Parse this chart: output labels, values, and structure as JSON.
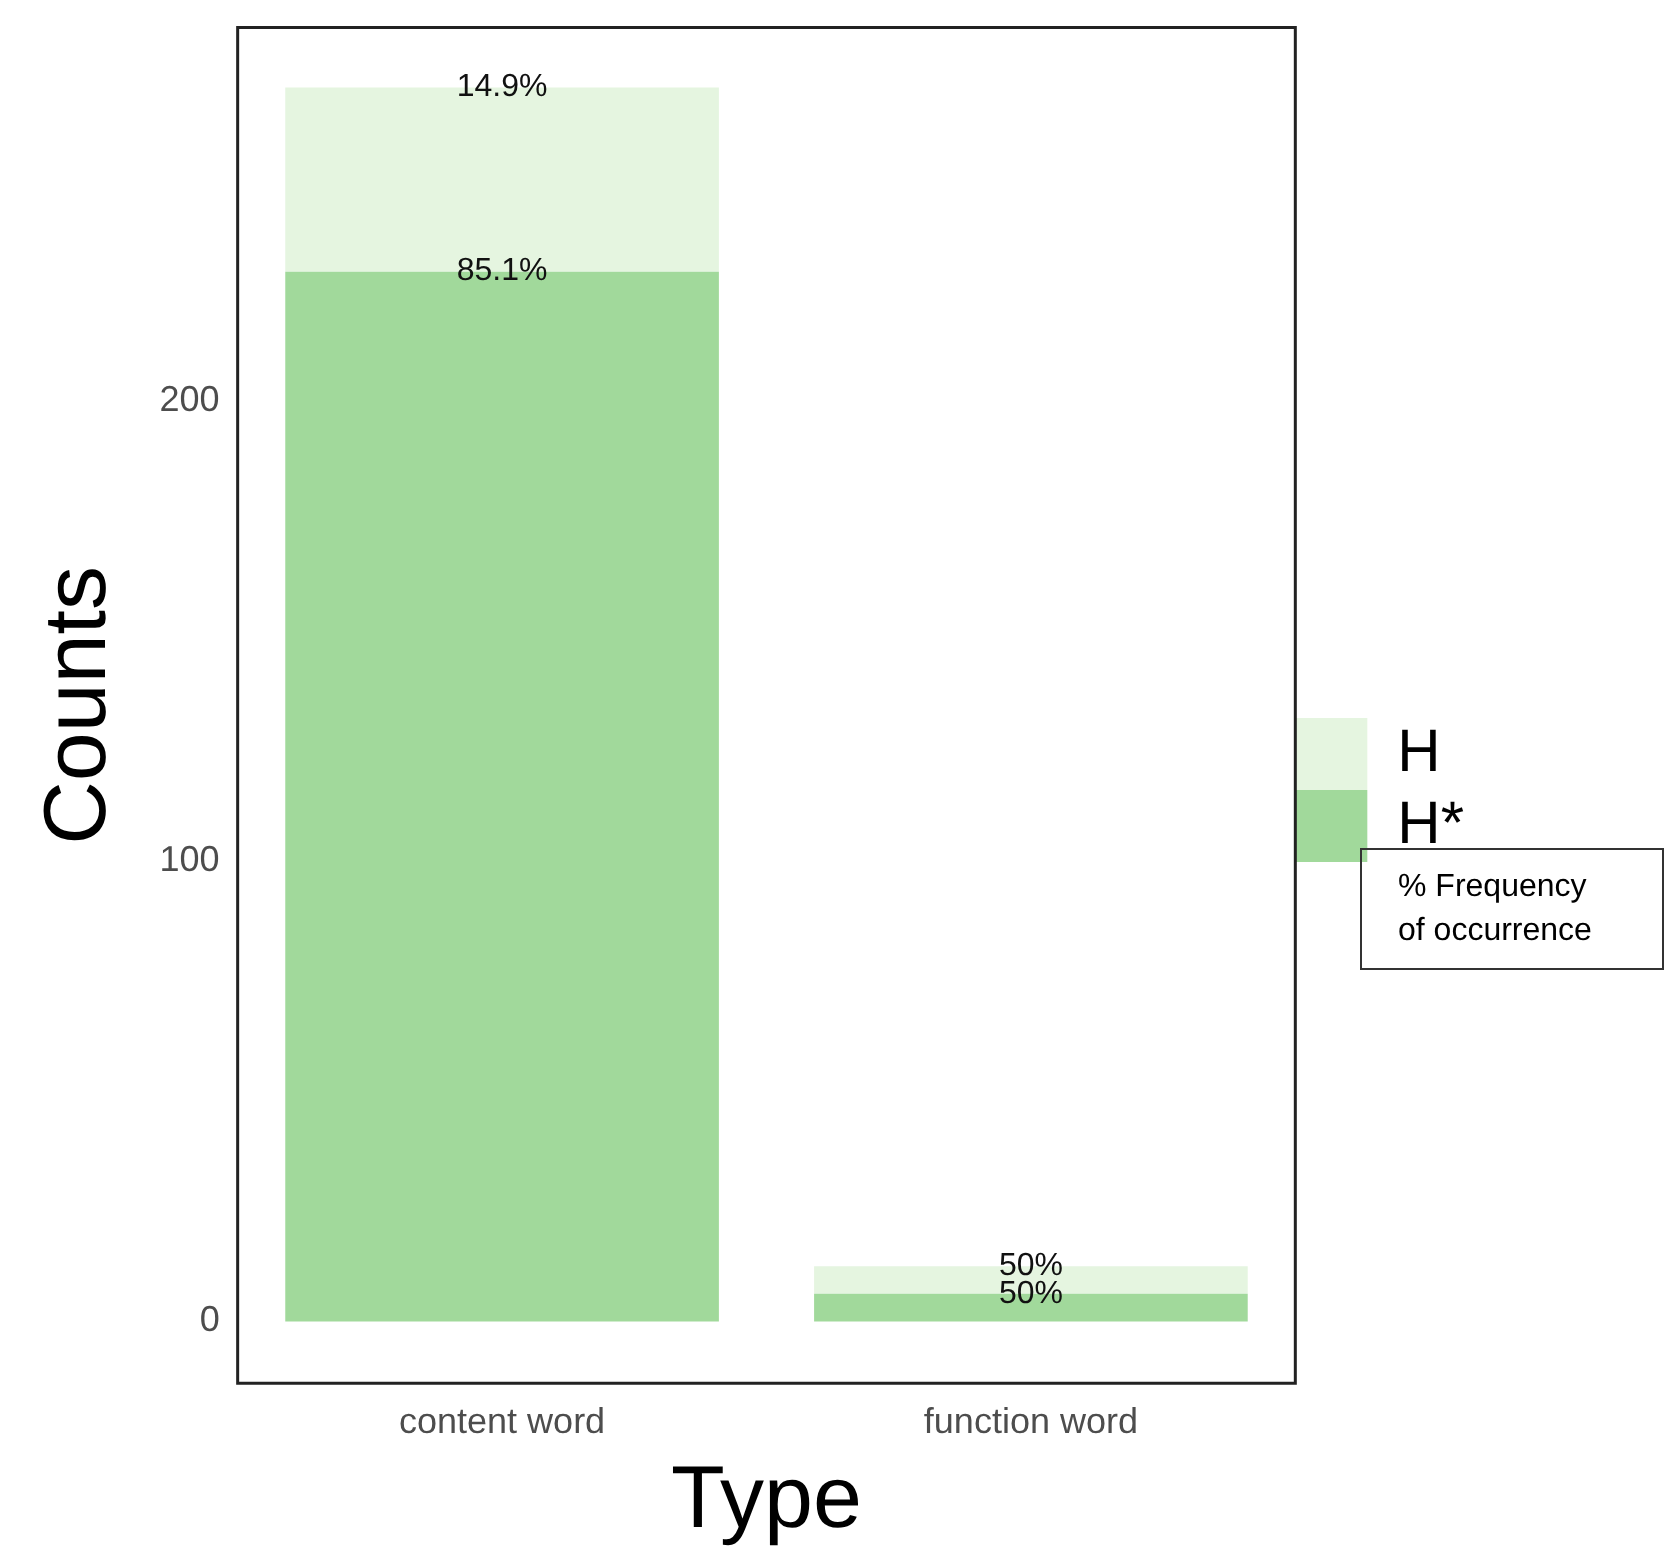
{
  "chart_data": {
    "type": "bar",
    "stacked": true,
    "xlabel": "Type",
    "ylabel": "Counts",
    "categories": [
      "content word",
      "function word"
    ],
    "series": [
      {
        "name": "H*",
        "color": "#a1d99b",
        "values": [
          228,
          6
        ]
      },
      {
        "name": "H",
        "color": "#e5f5e0",
        "values": [
          40,
          6
        ]
      }
    ],
    "ylim": [
      -13.4,
      281
    ],
    "yticks": [
      0,
      100,
      200
    ],
    "grid": false,
    "legend": "right",
    "annotations": [
      {
        "text": "14.9%",
        "x": "content word",
        "y": 268
      },
      {
        "text": "85.1%",
        "x": "content word",
        "y": 228
      },
      {
        "text": "50%",
        "x": "function word",
        "y": 12
      },
      {
        "text": "50%",
        "x": "function word",
        "y": 6
      },
      "% Frequency\nof occurrence"
    ]
  }
}
